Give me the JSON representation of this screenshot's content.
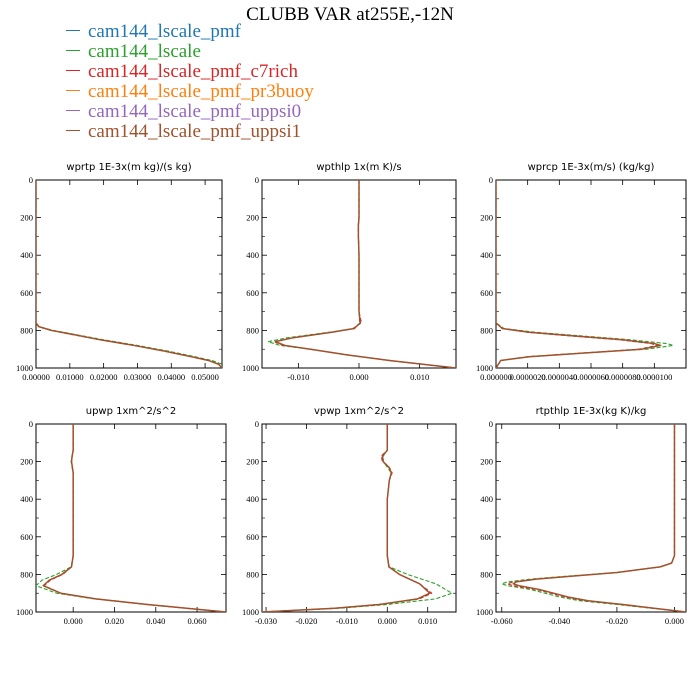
{
  "title": "CLUBB VAR at255E,-12N",
  "legend": [
    {
      "name": "cam144_lscale_pmf",
      "color": "#1f77b4"
    },
    {
      "name": "cam144_lscale",
      "color": "#2ca02c"
    },
    {
      "name": "cam144_lscale_pmf_c7rich",
      "color": "#d62728"
    },
    {
      "name": "cam144_lscale_pmf_pr3buoy",
      "color": "#ff7f0e"
    },
    {
      "name": "cam144_lscale_pmf_uppsi0",
      "color": "#9467bd"
    },
    {
      "name": "cam144_lscale_pmf_uppsi1",
      "color": "#a0522d"
    }
  ],
  "chart_data": [
    {
      "type": "line",
      "title": "wprtp  1E-3x(m kg)/(s kg)",
      "xlim": [
        0,
        0.055
      ],
      "ylim": [
        1000,
        0
      ],
      "xticks": [
        0,
        0.01,
        0.02,
        0.03,
        0.04,
        0.05
      ],
      "xticklabels": [
        "0.00000",
        "0.01000",
        "0.02000",
        "0.03000",
        "0.04000",
        "0.05000"
      ],
      "yticks": [
        0,
        200,
        400,
        600,
        800,
        1000
      ],
      "y": [
        0,
        200,
        400,
        600,
        700,
        760,
        780,
        800,
        820,
        850,
        880,
        910,
        940,
        960,
        980,
        1000
      ],
      "series": [
        {
          "color": "#2ca02c",
          "dashed": true,
          "x": [
            0,
            0,
            0,
            0,
            0,
            0,
            0.001,
            0.005,
            0.011,
            0.02,
            0.03,
            0.039,
            0.047,
            0.052,
            0.055,
            0.055
          ]
        },
        {
          "color": "#d62728",
          "dashed": true,
          "x": [
            0,
            0,
            0,
            0,
            0,
            0,
            0.0008,
            0.0045,
            0.01,
            0.019,
            0.029,
            0.038,
            0.046,
            0.051,
            0.054,
            0.055
          ]
        },
        {
          "color": "#a0522d",
          "dashed": false,
          "x": [
            0,
            0,
            0,
            0,
            0,
            0,
            0.0008,
            0.0045,
            0.0105,
            0.019,
            0.029,
            0.038,
            0.046,
            0.051,
            0.054,
            0.055
          ]
        }
      ]
    },
    {
      "type": "line",
      "title": "wpthlp  1x(m K)/s",
      "xlim": [
        -0.016,
        0.016
      ],
      "ylim": [
        1000,
        0
      ],
      "xticks": [
        -0.01,
        0,
        0.01
      ],
      "xticklabels": [
        "-0.010",
        "0.000",
        "0.010"
      ],
      "yticks": [
        0,
        200,
        400,
        600,
        800,
        1000
      ],
      "y": [
        0,
        200,
        240,
        300,
        400,
        600,
        700,
        760,
        790,
        810,
        840,
        860,
        880,
        900,
        930,
        960,
        1000
      ],
      "series": [
        {
          "color": "#2ca02c",
          "dashed": true,
          "x": [
            0,
            0,
            -0.0001,
            -0.0001,
            0,
            0,
            0,
            0.0001,
            -0.0007,
            -0.005,
            -0.012,
            -0.015,
            -0.013,
            -0.008,
            -0.002,
            0.005,
            0.016
          ]
        },
        {
          "color": "#d62728",
          "dashed": true,
          "x": [
            0,
            0,
            -0.0001,
            -0.0001,
            0,
            0,
            0,
            0.0004,
            -0.001,
            -0.0045,
            -0.011,
            -0.014,
            -0.0125,
            -0.008,
            -0.002,
            0.005,
            0.016
          ]
        },
        {
          "color": "#a0522d",
          "dashed": false,
          "x": [
            0,
            0,
            -0.0001,
            -0.0001,
            0,
            0,
            0,
            0.0002,
            -0.0008,
            -0.0045,
            -0.011,
            -0.0138,
            -0.0122,
            -0.008,
            -0.002,
            0.005,
            0.016
          ]
        }
      ]
    },
    {
      "type": "line",
      "title": "wprcp  1E-3x(m/s) (kg/kg)",
      "xlim": [
        0,
        1.2e-05
      ],
      "ylim": [
        1000,
        0
      ],
      "xticks": [
        0,
        2e-06,
        4e-06,
        6e-06,
        8e-06,
        1e-05
      ],
      "xticklabels": [
        "0.000000",
        "0.0000020",
        "0.0000040",
        "0.0000060",
        "0.0000080",
        "0.0000100"
      ],
      "yticks": [
        0,
        200,
        400,
        600,
        800,
        1000
      ],
      "y": [
        0,
        200,
        400,
        600,
        700,
        760,
        790,
        810,
        830,
        850,
        870,
        880,
        900,
        920,
        940,
        960,
        1000
      ],
      "series": [
        {
          "color": "#2ca02c",
          "dashed": true,
          "x": [
            0,
            0,
            0,
            0,
            0,
            0,
            5e-07,
            2.5e-06,
            5.5e-06,
            8.5e-06,
            1.08e-05,
            1.12e-05,
            9.5e-06,
            5.5e-06,
            2e-06,
            3e-07,
            0
          ]
        },
        {
          "color": "#d62728",
          "dashed": true,
          "x": [
            0,
            0,
            0,
            0,
            0,
            0,
            4e-07,
            2e-06,
            4.8e-06,
            7.8e-06,
            9.8e-06,
            1.02e-05,
            9e-06,
            5.5e-06,
            2e-06,
            3e-07,
            0
          ]
        },
        {
          "color": "#a0522d",
          "dashed": false,
          "x": [
            0,
            0,
            0,
            0,
            0,
            0,
            4e-07,
            2.1e-06,
            5e-06,
            8e-06,
            1e-05,
            1.04e-05,
            9.2e-06,
            5.6e-06,
            2.1e-06,
            3e-07,
            0
          ]
        }
      ]
    },
    {
      "type": "line",
      "title": "upwp  1xm^2/s^2",
      "xlim": [
        -0.018,
        0.074
      ],
      "ylim": [
        1000,
        0
      ],
      "xticks": [
        0,
        0.02,
        0.04,
        0.06
      ],
      "xticklabels": [
        "0.000",
        "0.020",
        "0.040",
        "0.060"
      ],
      "yticks": [
        0,
        200,
        400,
        600,
        800,
        1000
      ],
      "y": [
        0,
        140,
        170,
        200,
        230,
        260,
        300,
        400,
        600,
        700,
        760,
        800,
        830,
        860,
        900,
        930,
        960,
        1000
      ],
      "series": [
        {
          "color": "#2ca02c",
          "dashed": true,
          "x": [
            0,
            0,
            -0.0005,
            -0.001,
            -0.0005,
            0,
            0,
            0,
            0,
            0,
            -0.001,
            -0.008,
            -0.015,
            -0.018,
            -0.008,
            0.01,
            0.035,
            0.074
          ]
        },
        {
          "color": "#d62728",
          "dashed": true,
          "x": [
            0,
            0,
            -0.0005,
            -0.0008,
            -0.0004,
            0,
            0,
            0,
            0,
            0,
            -0.0008,
            -0.005,
            -0.011,
            -0.014,
            -0.006,
            0.011,
            0.036,
            0.074
          ]
        },
        {
          "color": "#a0522d",
          "dashed": false,
          "x": [
            0,
            0,
            -0.0005,
            -0.0008,
            -0.0004,
            0,
            0,
            0,
            0,
            0,
            -0.0008,
            -0.0055,
            -0.0115,
            -0.0145,
            -0.006,
            0.011,
            0.036,
            0.074
          ]
        }
      ]
    },
    {
      "type": "line",
      "title": "vpwp  1xm^2/s^2",
      "xlim": [
        -0.031,
        0.017
      ],
      "ylim": [
        1000,
        0
      ],
      "xticks": [
        -0.03,
        -0.02,
        -0.01,
        0,
        0.01
      ],
      "xticklabels": [
        "-0.030",
        "-0.020",
        "-0.010",
        "0.000",
        "0.010"
      ],
      "yticks": [
        0,
        200,
        400,
        600,
        800,
        1000
      ],
      "y": [
        0,
        140,
        170,
        200,
        230,
        260,
        300,
        400,
        600,
        700,
        760,
        800,
        850,
        900,
        930,
        960,
        980,
        1000
      ],
      "series": [
        {
          "color": "#2ca02c",
          "dashed": true,
          "x": [
            0,
            0,
            -0.001,
            -0.001,
            0,
            0.001,
            0.0005,
            0,
            0,
            0,
            0.0005,
            0.005,
            0.012,
            0.016,
            0.012,
            0,
            -0.012,
            -0.031
          ]
        },
        {
          "color": "#d62728",
          "dashed": true,
          "x": [
            0,
            0,
            -0.0015,
            -0.0012,
            0.0005,
            0.0012,
            0.0005,
            0,
            0,
            0,
            0.0004,
            0.003,
            0.008,
            0.011,
            0.008,
            -0.002,
            -0.013,
            -0.031
          ]
        },
        {
          "color": "#a0522d",
          "dashed": false,
          "x": [
            0,
            0,
            -0.0012,
            -0.001,
            0.0004,
            0.001,
            0.0005,
            0,
            0,
            0,
            0.0004,
            0.003,
            0.008,
            0.0105,
            0.0075,
            -0.002,
            -0.013,
            -0.031
          ]
        }
      ]
    },
    {
      "type": "line",
      "title": "rtpthlp  1E-3x(kg K)/kg",
      "xlim": [
        -0.062,
        0.004
      ],
      "ylim": [
        1000,
        0
      ],
      "xticks": [
        -0.06,
        -0.04,
        -0.02,
        0
      ],
      "xticklabels": [
        "-0.060",
        "-0.040",
        "-0.020",
        "0.000"
      ],
      "yticks": [
        0,
        200,
        400,
        600,
        800,
        1000
      ],
      "y": [
        0,
        200,
        400,
        600,
        700,
        740,
        760,
        790,
        810,
        825,
        840,
        850,
        860,
        880,
        900,
        920,
        940,
        960,
        1000
      ],
      "series": [
        {
          "color": "#2ca02c",
          "dashed": true,
          "x": [
            0,
            0,
            0,
            0,
            0,
            -0.001,
            -0.005,
            -0.02,
            -0.038,
            -0.05,
            -0.058,
            -0.06,
            -0.058,
            -0.05,
            -0.045,
            -0.04,
            -0.033,
            -0.02,
            0.004
          ]
        },
        {
          "color": "#d62728",
          "dashed": true,
          "x": [
            0,
            0,
            0,
            0,
            0,
            -0.001,
            -0.005,
            -0.02,
            -0.036,
            -0.048,
            -0.056,
            -0.058,
            -0.056,
            -0.048,
            -0.043,
            -0.038,
            -0.031,
            -0.018,
            0.004
          ]
        },
        {
          "color": "#a0522d",
          "dashed": false,
          "x": [
            0,
            0,
            0,
            0,
            0,
            -0.001,
            -0.005,
            -0.02,
            -0.036,
            -0.048,
            -0.055,
            -0.056,
            -0.054,
            -0.047,
            -0.042,
            -0.037,
            -0.03,
            -0.018,
            0.004
          ]
        }
      ]
    }
  ]
}
